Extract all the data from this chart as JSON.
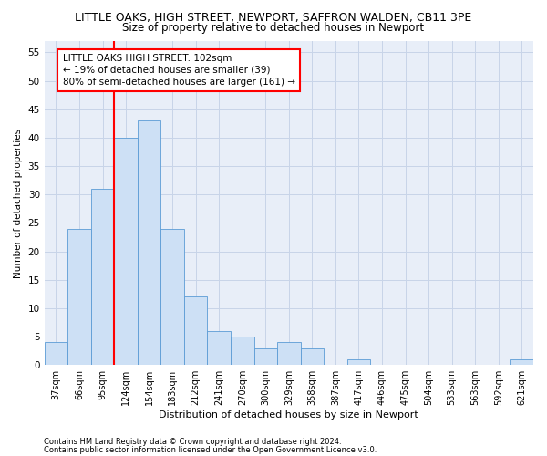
{
  "title": "LITTLE OAKS, HIGH STREET, NEWPORT, SAFFRON WALDEN, CB11 3PE",
  "subtitle": "Size of property relative to detached houses in Newport",
  "xlabel": "Distribution of detached houses by size in Newport",
  "ylabel": "Number of detached properties",
  "footnote1": "Contains HM Land Registry data © Crown copyright and database right 2024.",
  "footnote2": "Contains public sector information licensed under the Open Government Licence v3.0.",
  "annotation_line1": "LITTLE OAKS HIGH STREET: 102sqm",
  "annotation_line2": "← 19% of detached houses are smaller (39)",
  "annotation_line3": "80% of semi-detached houses are larger (161) →",
  "bar_labels": [
    "37sqm",
    "66sqm",
    "95sqm",
    "124sqm",
    "154sqm",
    "183sqm",
    "212sqm",
    "241sqm",
    "270sqm",
    "300sqm",
    "329sqm",
    "358sqm",
    "387sqm",
    "417sqm",
    "446sqm",
    "475sqm",
    "504sqm",
    "533sqm",
    "563sqm",
    "592sqm",
    "621sqm"
  ],
  "bar_values": [
    4,
    24,
    31,
    40,
    43,
    24,
    12,
    6,
    5,
    3,
    4,
    3,
    0,
    1,
    0,
    0,
    0,
    0,
    0,
    0,
    1
  ],
  "bar_color": "#cde0f5",
  "bar_edge_color": "#5b9bd5",
  "red_line_x": 2.5,
  "ylim": [
    0,
    57
  ],
  "yticks": [
    0,
    5,
    10,
    15,
    20,
    25,
    30,
    35,
    40,
    45,
    50,
    55
  ],
  "grid_color": "#c8d4e8",
  "bg_color": "#e8eef8",
  "title_fontsize": 9,
  "subtitle_fontsize": 8.5,
  "xlabel_fontsize": 8,
  "ylabel_fontsize": 7.5,
  "tick_fontsize": 7,
  "annotation_fontsize": 7.5,
  "footnote_fontsize": 6
}
